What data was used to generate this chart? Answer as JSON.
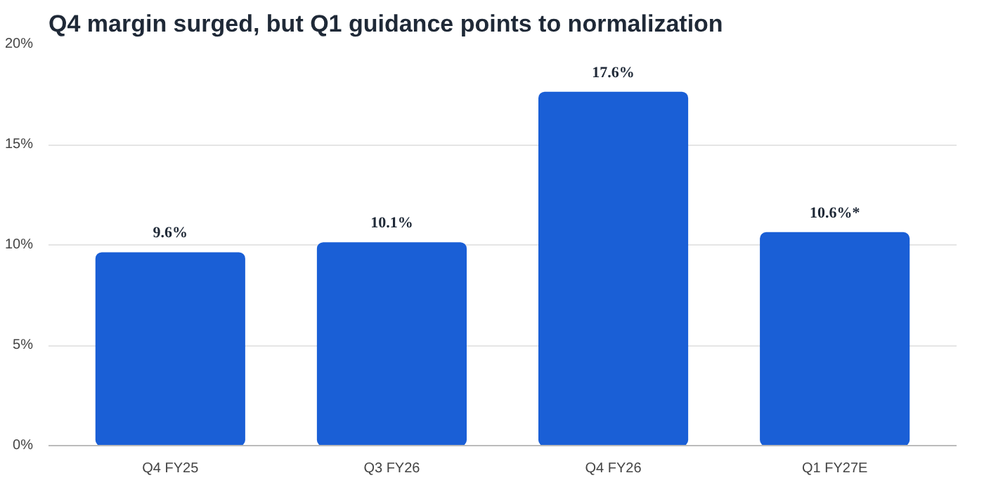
{
  "chart_data": {
    "type": "bar",
    "title": "Q4 margin surged, but Q1 guidance points to normalization",
    "categories": [
      "Q4 FY25",
      "Q3 FY26",
      "Q4 FY26",
      "Q1 FY27E"
    ],
    "values": [
      9.6,
      10.1,
      17.6,
      10.6
    ],
    "value_labels": [
      "9.6%",
      "10.1%",
      "17.6%",
      "10.6%*"
    ],
    "color": "#1a5fd6",
    "ylim": [
      0,
      20
    ],
    "yticks": [
      {
        "value": 0,
        "label": "0%"
      },
      {
        "value": 5,
        "label": "5%"
      },
      {
        "value": 10,
        "label": "10%"
      },
      {
        "value": 15,
        "label": "15%"
      },
      {
        "value": 20,
        "label": "20%"
      }
    ],
    "grid": "y"
  }
}
